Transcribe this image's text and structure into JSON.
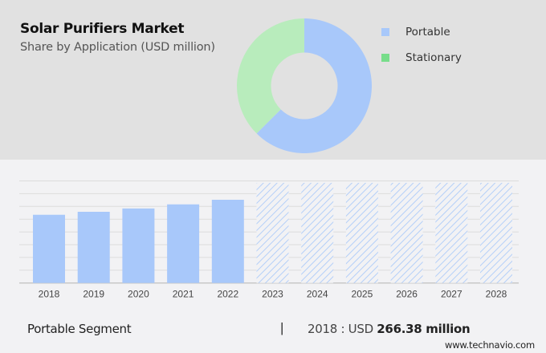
{
  "header": {
    "title": "Solar Purifiers Market",
    "subtitle": "Share by Application (USD million)"
  },
  "legend": [
    {
      "label": "Portable",
      "color": "#a8c8fa"
    },
    {
      "label": "Stationary",
      "color": "#77dd8a"
    }
  ],
  "footer": {
    "segment_label": "Portable Segment",
    "separator": "|",
    "year_prefix": "2018 : USD ",
    "value": "266.38 million",
    "source": "www.technavio.com"
  },
  "colors": {
    "portable": "#a8c8fa",
    "stationary_donut": "#b8ecbc",
    "stationary_legend": "#77dd8a",
    "top_bg": "#e1e1e1",
    "bottom_bg": "#f2f2f4"
  },
  "chart_data": [
    {
      "type": "pie",
      "title": "Solar Purifiers Market",
      "subtitle": "Share by Application (USD million)",
      "donut": true,
      "categories": [
        "Portable",
        "Stationary"
      ],
      "values": [
        62.5,
        37.5
      ],
      "unit": "% share (estimated from arc angles)",
      "legend_position": "right"
    },
    {
      "type": "bar",
      "title": "Portable Segment",
      "categories": [
        "2018",
        "2019",
        "2020",
        "2021",
        "2022",
        "2023",
        "2024",
        "2025",
        "2026",
        "2027",
        "2028"
      ],
      "series": [
        {
          "name": "Portable (historic)",
          "values": [
            266.38,
            278,
            291,
            307,
            325,
            null,
            null,
            null,
            null,
            null,
            null
          ]
        },
        {
          "name": "Portable (forecast, hatched, undisclosed)",
          "values": [
            null,
            null,
            null,
            null,
            null,
            391,
            391,
            391,
            391,
            391,
            391
          ]
        }
      ],
      "xlabel": "",
      "ylabel": "USD million",
      "ylim": [
        0,
        400
      ],
      "grid": true,
      "annotation": "2018 : USD 266.38 million"
    }
  ]
}
